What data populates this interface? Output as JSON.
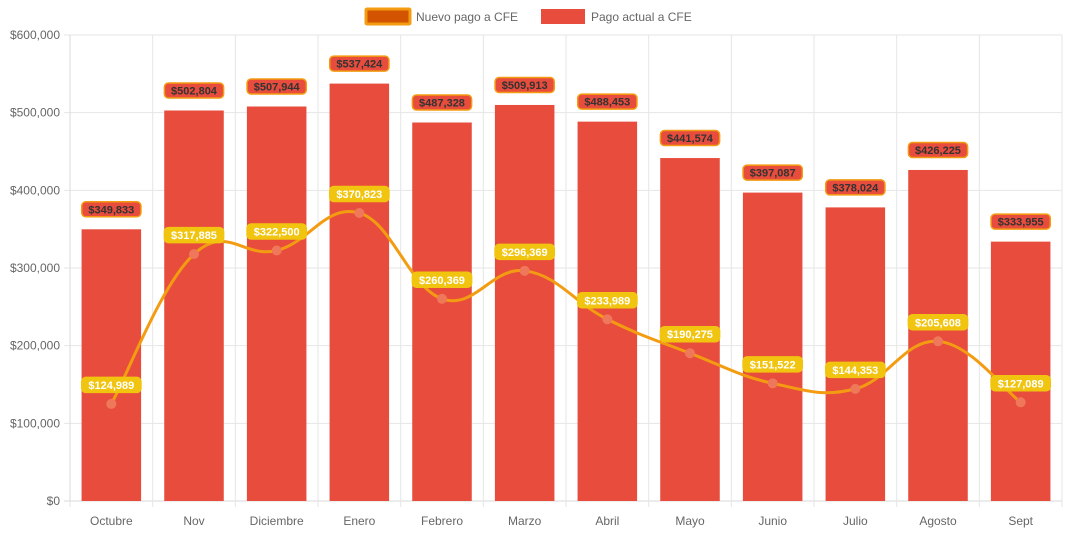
{
  "chart_data": {
    "type": "bar",
    "categories": [
      "Octubre",
      "Nov",
      "Diciembre",
      "Enero",
      "Febrero",
      "Marzo",
      "Abril",
      "Mayo",
      "Junio",
      "Julio",
      "Agosto",
      "Sept"
    ],
    "y_ticks": [
      "$0",
      "$100,000",
      "$200,000",
      "$300,000",
      "$400,000",
      "$500,000",
      "$600,000"
    ],
    "ylim": [
      0,
      600000
    ],
    "grid": true,
    "legend_position": "top",
    "series": [
      {
        "name": "Nuevo pago a CFE",
        "type": "line",
        "smooth": true,
        "color": "#f39c12",
        "point_color": "#f0785a",
        "label_bg": "#f1c40f",
        "label_text_color": "#ffffff",
        "values": [
          124989,
          317885,
          322500,
          370823,
          260369,
          296369,
          233989,
          190275,
          151522,
          144353,
          205608,
          127089
        ],
        "labels": [
          "$124,989",
          "$317,885",
          "$322,500",
          "$370,823",
          "$260,369",
          "$296,369",
          "$233,989",
          "$190,275",
          "$151,522",
          "$144,353",
          "$205,608",
          "$127,089"
        ]
      },
      {
        "name": "Pago actual a CFE",
        "type": "bar",
        "color": "#e74c3c",
        "label_bg": "#e74c3c",
        "label_border": "#f39c12",
        "label_text_color": "#333333",
        "values": [
          349833,
          502804,
          507944,
          537424,
          487328,
          509913,
          488453,
          441574,
          397087,
          378024,
          426225,
          333955
        ],
        "labels": [
          "$349,833",
          "$502,804",
          "$507,944",
          "$537,424",
          "$487,328",
          "$509,913",
          "$488,453",
          "$441,574",
          "$397,087",
          "$378,024",
          "$426,225",
          "$333,955"
        ]
      }
    ]
  }
}
